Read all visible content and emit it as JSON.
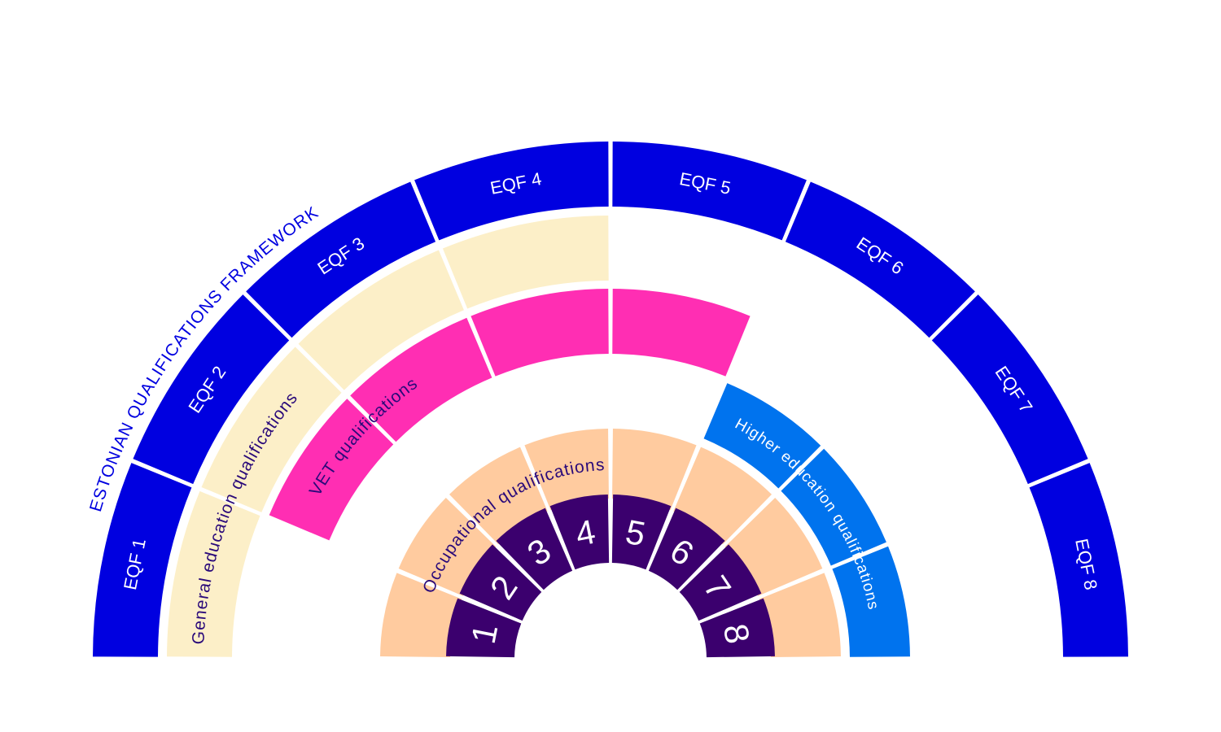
{
  "framework": {
    "title": "ESTONIAN QUALIFICATIONS FRAMEWORK",
    "eqf_levels": [
      "EQF 1",
      "EQF 2",
      "EQF 3",
      "EQF 4",
      "EQF 5",
      "EQF 6",
      "EQF 7",
      "EQF 8"
    ]
  },
  "levels": [
    "1",
    "2",
    "3",
    "4",
    "5",
    "6",
    "7",
    "8"
  ],
  "qualifications": [
    {
      "label": "General education qualifications",
      "levels": [
        1,
        2,
        3,
        4
      ],
      "color": "#fcefc8"
    },
    {
      "label": "VET qualifications",
      "levels": [
        2,
        3,
        4,
        5
      ],
      "color": "#ff2eb3"
    },
    {
      "label": "Occupational qualifications",
      "levels": [
        1,
        2,
        3,
        4,
        5,
        6,
        7,
        8
      ],
      "color": "#ffcb9f"
    },
    {
      "label": "Higher education qualifications",
      "levels": [
        6,
        7,
        8
      ],
      "color": "#0073ee"
    }
  ],
  "colors": {
    "eqf_ring": "#0000e0",
    "eqf_text": "#ffffff",
    "title_text": "#0000e0",
    "level_ring": "#3b006e",
    "level_text": "#ffffff",
    "label_text": "#2a0a7a",
    "higher_label_text": "#ffffff"
  }
}
